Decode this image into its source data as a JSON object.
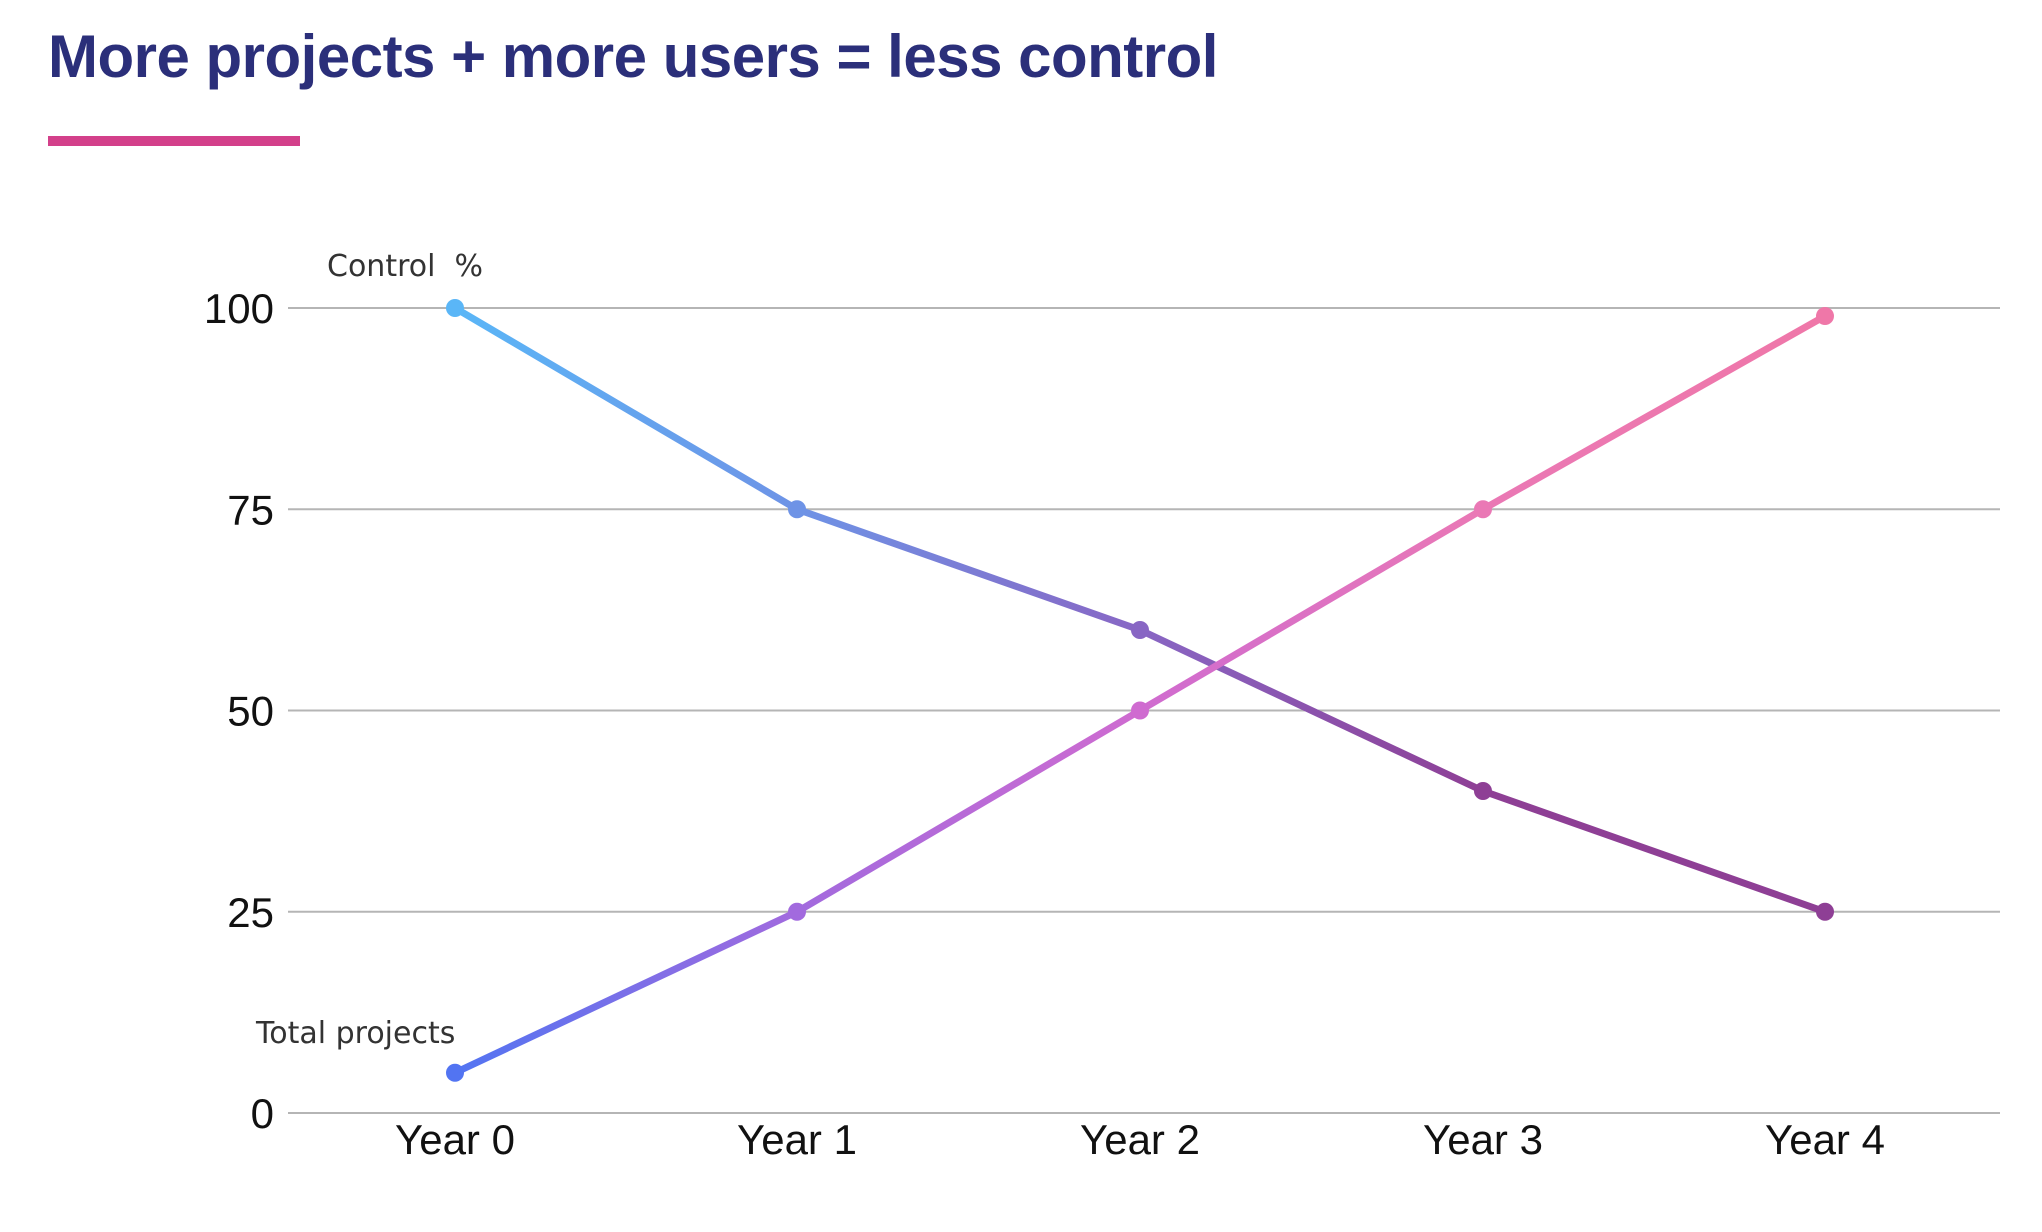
{
  "title": "More projects + more users = less control",
  "colors": {
    "title": "#2b2f7a",
    "accent": "#d3408a",
    "grid": "#b5b5b5"
  },
  "chart_data": {
    "type": "line",
    "categories": [
      "Year 0",
      "Year 1",
      "Year 2",
      "Year 3",
      "Year 4"
    ],
    "ylim": [
      0,
      100
    ],
    "yticks": [
      0,
      25,
      50,
      75,
      100
    ],
    "grid": true,
    "series": [
      {
        "name": "Control  %",
        "values": [
          100,
          75,
          60,
          40,
          25
        ],
        "colors": [
          "#5ab6f7",
          "#6e93e6",
          "#8866c4",
          "#8e3f95",
          "#8e3f95"
        ]
      },
      {
        "name": "Total projects",
        "values": [
          5,
          25,
          50,
          75,
          99
        ],
        "colors": [
          "#5274f2",
          "#a26ade",
          "#cf6bd0",
          "#ea78b5",
          "#ef77a8"
        ]
      }
    ]
  }
}
